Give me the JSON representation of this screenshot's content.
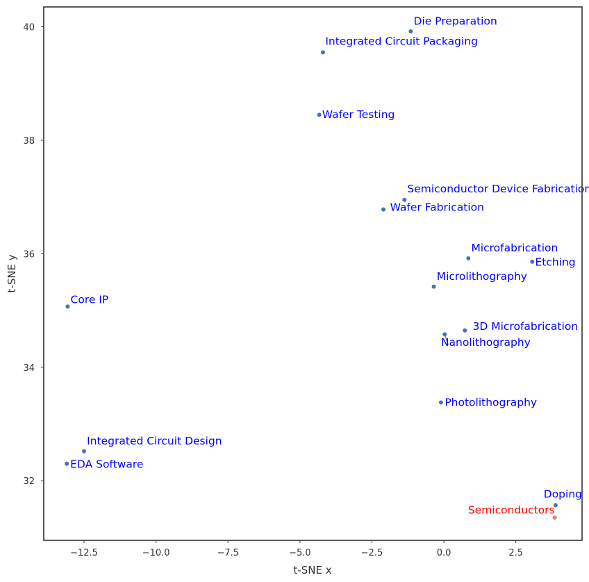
{
  "chart_data": {
    "type": "scatter",
    "title": "",
    "xlabel": "t-SNE x",
    "ylabel": "t-SNE y",
    "xlim": [
      -13.9,
      4.8
    ],
    "ylim": [
      30.95,
      40.35
    ],
    "xticks": [
      {
        "value": -12.5,
        "label": "−12.5"
      },
      {
        "value": -10.0,
        "label": "−10.0"
      },
      {
        "value": -7.5,
        "label": "−7.5"
      },
      {
        "value": -5.0,
        "label": "−5.0"
      },
      {
        "value": -2.5,
        "label": "−2.5"
      },
      {
        "value": 0.0,
        "label": "0.0"
      },
      {
        "value": 2.5,
        "label": "2.5"
      }
    ],
    "yticks": [
      {
        "value": 32,
        "label": "32"
      },
      {
        "value": 34,
        "label": "34"
      },
      {
        "value": 36,
        "label": "36"
      },
      {
        "value": 38,
        "label": "38"
      },
      {
        "value": 40,
        "label": "40"
      }
    ],
    "grid": false,
    "colors": {
      "point": "#4c72b0",
      "highlight_point": "#dd8452",
      "label": "#0000ff",
      "highlight_label": "#ff0000",
      "leader": "#808080",
      "axis": "#333333"
    },
    "points": [
      {
        "name": "Die Preparation",
        "x": -1.15,
        "y": 39.92,
        "lx": -1.05,
        "ly": 40.04,
        "anchor": "start",
        "highlight": false
      },
      {
        "name": "Integrated Circuit Packaging",
        "x": -4.2,
        "y": 39.55,
        "lx": -4.12,
        "ly": 39.68,
        "anchor": "start",
        "highlight": false
      },
      {
        "name": "Wafer Testing",
        "x": -4.33,
        "y": 38.45,
        "lx": -4.23,
        "ly": 38.39,
        "anchor": "start",
        "highlight": false
      },
      {
        "name": "Semiconductor Device Fabrication",
        "x": -1.37,
        "y": 36.95,
        "lx": -1.27,
        "ly": 37.08,
        "anchor": "start",
        "highlight": false
      },
      {
        "name": "Wafer Fabrication",
        "x": -2.1,
        "y": 36.78,
        "lx": -1.87,
        "ly": 36.76,
        "anchor": "start",
        "highlight": false
      },
      {
        "name": "Microfabrication",
        "x": 0.85,
        "y": 35.92,
        "lx": 0.95,
        "ly": 36.04,
        "anchor": "start",
        "highlight": false
      },
      {
        "name": "Etching",
        "x": 3.07,
        "y": 35.86,
        "lx": 3.17,
        "ly": 35.79,
        "anchor": "start",
        "highlight": false
      },
      {
        "name": "Microlithography",
        "x": -0.35,
        "y": 35.42,
        "lx": -0.25,
        "ly": 35.54,
        "anchor": "start",
        "highlight": false
      },
      {
        "name": "Core IP",
        "x": -13.07,
        "y": 35.07,
        "lx": -12.97,
        "ly": 35.13,
        "anchor": "start",
        "highlight": false
      },
      {
        "name": "3D Microfabrication",
        "x": 0.73,
        "y": 34.65,
        "lx": 1.0,
        "ly": 34.66,
        "anchor": "start",
        "highlight": false
      },
      {
        "name": "Nanolithography",
        "x": 0.03,
        "y": 34.58,
        "lx": -0.1,
        "ly": 34.38,
        "anchor": "start",
        "highlight": false
      },
      {
        "name": "Photolithography",
        "x": -0.1,
        "y": 33.38,
        "lx": 0.03,
        "ly": 33.32,
        "anchor": "start",
        "highlight": false
      },
      {
        "name": "Integrated Circuit Design",
        "x": -12.5,
        "y": 32.52,
        "lx": -12.4,
        "ly": 32.64,
        "anchor": "start",
        "highlight": false
      },
      {
        "name": "EDA Software",
        "x": -13.1,
        "y": 32.3,
        "lx": -12.98,
        "ly": 32.23,
        "anchor": "start",
        "highlight": false
      },
      {
        "name": "Doping",
        "x": 3.88,
        "y": 31.57,
        "lx": 4.8,
        "ly": 31.7,
        "anchor": "end",
        "highlight": false
      },
      {
        "name": "Semiconductors",
        "x": 3.85,
        "y": 31.35,
        "lx": 3.85,
        "ly": 31.42,
        "anchor": "end",
        "highlight": true
      }
    ]
  }
}
